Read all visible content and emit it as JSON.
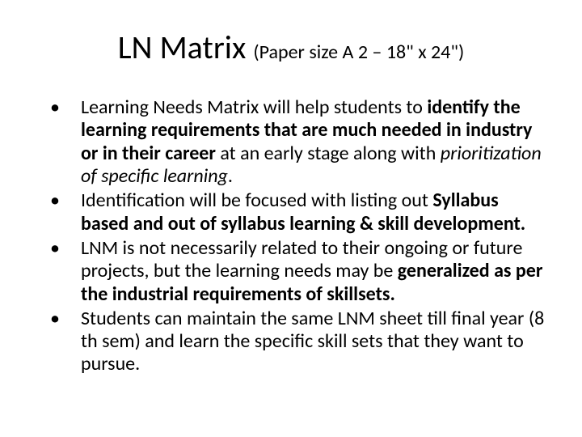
{
  "title": {
    "main": "LN Matrix ",
    "sub": "(Paper size A 2 – 18\" x 24\")"
  },
  "bullets": [
    {
      "runs": [
        {
          "text": "Learning Needs Matrix will help students to ",
          "style": ""
        },
        {
          "text": "identify the learning requirements that are much needed in industry or in their career ",
          "style": "bold"
        },
        {
          "text": "at an early stage along with ",
          "style": ""
        },
        {
          "text": "prioritization of specific learning",
          "style": "italic"
        },
        {
          "text": ".",
          "style": ""
        }
      ]
    },
    {
      "runs": [
        {
          "text": "Identification will be focused with listing out ",
          "style": ""
        },
        {
          "text": "Syllabus based and out of syllabus learning & skill development.",
          "style": "bold"
        }
      ]
    },
    {
      "runs": [
        {
          "text": "LNM is not necessarily related to their ongoing or future projects, but the learning needs may be ",
          "style": ""
        },
        {
          "text": "generalized as per the industrial requirements of skillsets.",
          "style": "bold"
        }
      ]
    },
    {
      "runs": [
        {
          "text": "Students can maintain the same LNM sheet till final year (8 th sem) and learn the specific skill sets that they want to pursue.",
          "style": ""
        }
      ]
    }
  ],
  "styles": {
    "background_color": "#ffffff",
    "text_color": "#000000",
    "title_main_fontsize": 40,
    "title_sub_fontsize": 24,
    "bullet_fontsize": 24,
    "font_family": "Calibri"
  }
}
